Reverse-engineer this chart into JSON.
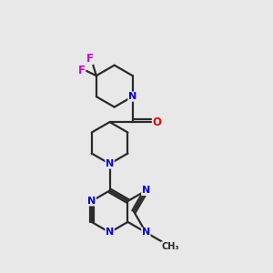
{
  "background_color": "#e8e8e8",
  "bond_color": "#2a2a2a",
  "N_color": "#0000ee",
  "O_color": "#ee0000",
  "F_color": "#cc00cc",
  "figsize": [
    3.0,
    3.0
  ],
  "dpi": 100,
  "xlim": [
    0,
    10
  ],
  "ylim": [
    0,
    10
  ]
}
